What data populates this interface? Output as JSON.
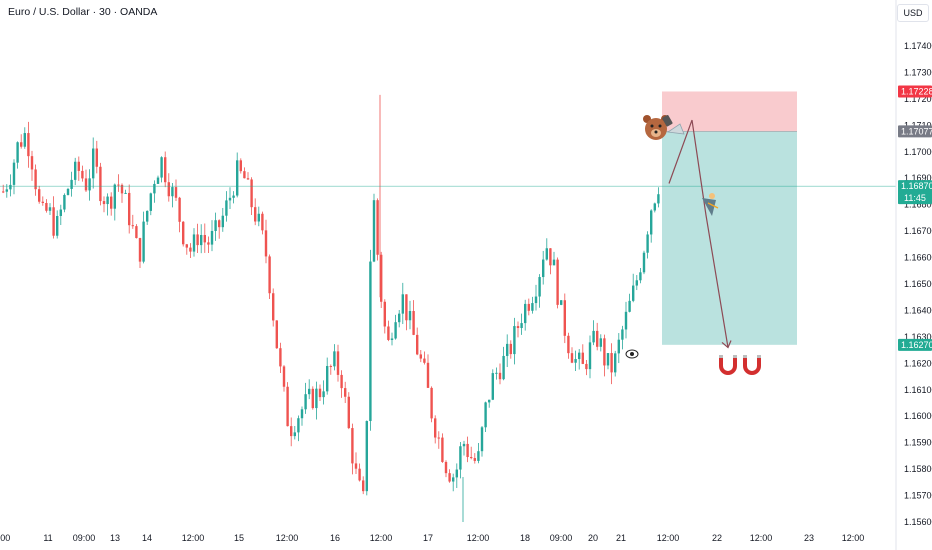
{
  "header": {
    "title": "Euro / U.S. Dollar · 30 · OANDA",
    "currency_button": "USD"
  },
  "colors": {
    "up": "#26a69a",
    "down": "#ef5350",
    "stop_zone": "#f8c2c6",
    "target_zone": "#b2dfdb",
    "stop_tag": "#f23645",
    "entry_tag": "#787b86",
    "price_tag": "#22ab94",
    "path": "#8d4a55"
  },
  "chart_data": {
    "type": "candlestick",
    "title": "Euro / U.S. Dollar · 30 · OANDA",
    "ylim": [
      1.1557,
      1.1745
    ],
    "y_ticks": [
      "1.17400",
      "1.17300",
      "1.17200",
      "1.17100",
      "1.17000",
      "1.16900",
      "1.16800",
      "1.16700",
      "1.16600",
      "1.16500",
      "1.16400",
      "1.16300",
      "1.16200",
      "1.16100",
      "1.16000",
      "1.15900",
      "1.15800",
      "1.15700",
      "1.15600"
    ],
    "x_ticks": [
      ":00",
      "11",
      "09:00",
      "13",
      "14",
      "12:00",
      "15",
      "12:00",
      "16",
      "12:00",
      "17",
      "12:00",
      "18",
      "09:00",
      "20",
      "21",
      "12:00",
      "22",
      "12:00",
      "23",
      "12:00"
    ],
    "price_path": [
      1.1685,
      1.1692,
      1.1703,
      1.1707,
      1.1695,
      1.1675,
      1.1678,
      1.167,
      1.1681,
      1.169,
      1.1693,
      1.1688,
      1.1697,
      1.1685,
      1.168,
      1.169,
      1.1683,
      1.1673,
      1.166,
      1.1676,
      1.169,
      1.1697,
      1.1688,
      1.168,
      1.1668,
      1.1662,
      1.167,
      1.1665,
      1.1668,
      1.1674,
      1.1682,
      1.1692,
      1.169,
      1.168,
      1.1672,
      1.166,
      1.1635,
      1.1612,
      1.1595,
      1.16,
      1.1604,
      1.1607,
      1.1609,
      1.1616,
      1.162,
      1.1614,
      1.1592,
      1.1575,
      1.1566,
      1.169,
      1.165,
      1.1625,
      1.164,
      1.1645,
      1.1635,
      1.1625,
      1.1615,
      1.16,
      1.159,
      1.158,
      1.1577,
      1.1591,
      1.1585,
      1.1582,
      1.1602,
      1.1614,
      1.1619,
      1.1623,
      1.1631,
      1.164,
      1.1645,
      1.1652,
      1.1666,
      1.1658,
      1.164,
      1.1628,
      1.1621,
      1.1618,
      1.1626,
      1.163,
      1.162,
      1.1618,
      1.163,
      1.164,
      1.165,
      1.1663,
      1.1679,
      1.1688
    ],
    "current_price": 1.1687,
    "trade_setup": {
      "position": "short",
      "stop_loss": 1.17228,
      "entry": 1.17077,
      "take_profit": 1.1627
    },
    "annotations": [
      "bear-emoji",
      "trader-icon",
      "magnets",
      "eye-icon"
    ]
  },
  "price_tags": {
    "stop_loss": "1.17228",
    "entry": "1.17077",
    "current": "1.16870",
    "countdown": "11:45",
    "take_profit": "1.16270"
  }
}
